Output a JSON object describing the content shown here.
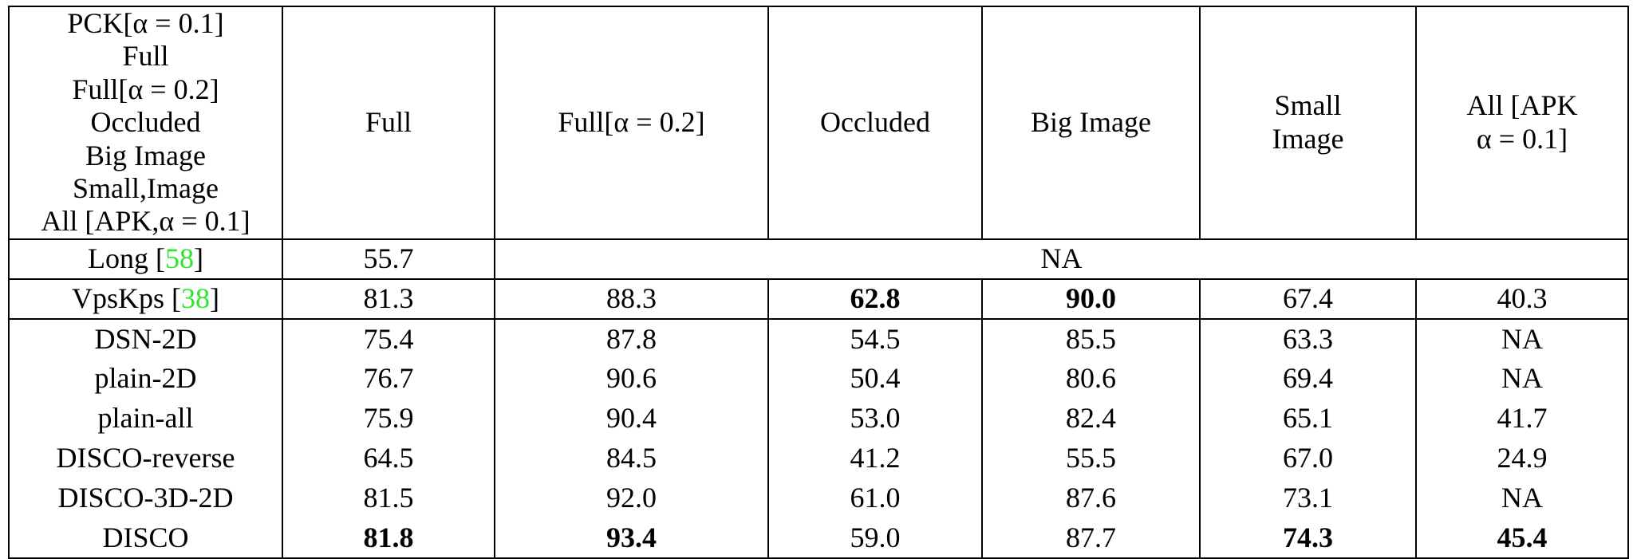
{
  "table": {
    "header": [
      "PCK[α = 0.1]",
      "Full",
      "Full[α = 0.2]",
      "Occluded",
      "Big Image",
      [
        "Small",
        "Image"
      ],
      [
        "All [APK",
        "α = 0.1]"
      ]
    ],
    "rows": [
      {
        "label": [
          "Long [",
          "58",
          "]"
        ],
        "cells": [
          "55.7",
          "NA"
        ]
      },
      {
        "label": [
          "VpsKps [",
          "38",
          "]"
        ],
        "cells": [
          "81.3",
          "88.3",
          "62.8",
          "90.0",
          "67.4",
          "40.3"
        ]
      },
      {
        "label": "DSN-2D",
        "cells": [
          "75.4",
          "87.8",
          "54.5",
          "85.5",
          "63.3",
          "NA"
        ]
      },
      {
        "label": "plain-2D",
        "cells": [
          "76.7",
          "90.6",
          "50.4",
          "80.6",
          "69.4",
          "NA"
        ]
      },
      {
        "label": "plain-all",
        "cells": [
          "75.9",
          "90.4",
          "53.0",
          "82.4",
          "65.1",
          "41.7"
        ]
      },
      {
        "label": "DISCO-reverse",
        "cells": [
          "64.5",
          "84.5",
          "41.2",
          "55.5",
          "67.0",
          "24.9"
        ]
      },
      {
        "label": "DISCO-3D-2D",
        "cells": [
          "81.5",
          "92.0",
          "61.0",
          "87.6",
          "73.1",
          "NA"
        ]
      },
      {
        "label": "DISCO",
        "cells": [
          "81.8",
          "93.4",
          "59.0",
          "87.7",
          "74.3",
          "45.4"
        ]
      }
    ]
  }
}
